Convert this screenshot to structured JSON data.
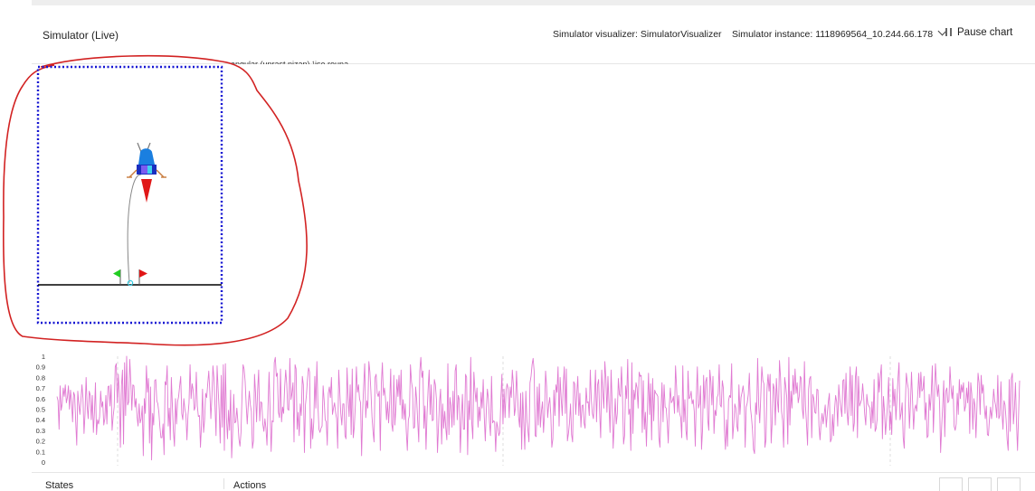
{
  "header": {
    "title": "Simulator (Live)",
    "visualizer_label": "Simulator visualizer: SimulatorVisualizer",
    "instance_label": "Simulator instance: 1118969564_10.244.66.178",
    "pause_label": "Pause chart"
  },
  "legend_snippet": "angular (unrast nizan) ¹ise rouna",
  "colors": {
    "annotation": "#d22222",
    "border_dots": "#1414d2",
    "series": "#e07ad2",
    "ground": "#000000"
  },
  "icons": {
    "pause": "pause-icon",
    "instance_dropdown": "chevron-down-icon",
    "lander": "lunar-lander-icon",
    "green_flag": "flag-icon",
    "red_flag": "flag-icon"
  },
  "chart_data": {
    "type": "line",
    "ylim": [
      0,
      1
    ],
    "y_ticks": [
      "1",
      "0.9",
      "0.8",
      "0.7",
      "0.6",
      "0.5",
      "0.4",
      "0.3",
      "0.2",
      "0.1",
      "0"
    ],
    "grid": "vertical dashed",
    "series": [
      {
        "color": "#e07ad2",
        "values": [
          0.62,
          0.58,
          0.31,
          0.72,
          0.49,
          0.55,
          0.7,
          0.62,
          0.73,
          0.56,
          0.61,
          0.72,
          0.5,
          0.68,
          0.57,
          0.38,
          0.66,
          0.63,
          0.38,
          0.16,
          0.67,
          0.55,
          0.45,
          0.58,
          0.73,
          0.6,
          0.27,
          0.46,
          0.8,
          0.53,
          0.41,
          0.67,
          0.63,
          0.4,
          0.63,
          0.28,
          0.47,
          0.75,
          0.26,
          0.4,
          0.36,
          0.43,
          0.67,
          0.52,
          0.57,
          0.35,
          0.41,
          0.63,
          0.36,
          0.71,
          0.72,
          0.53,
          0.73,
          0.3,
          0.43,
          0.52,
          0.9,
          0.93,
          0.56,
          0.83,
          0.63,
          0.14,
          0.72,
          0.87,
          0.17,
          0.94,
          0.44,
          1.0,
          0.54,
          0.57,
          0.97,
          0.76,
          0.49,
          0.73,
          0.72,
          0.52,
          0.6,
          0.43,
          0.34,
          0.55,
          0.37,
          0.41,
          0.53,
          0.06,
          0.6,
          0.46,
          0.91,
          0.66,
          0.79,
          0.18,
          0.71,
          0.02,
          0.46,
          0.35,
          0.77,
          0.78,
          0.58,
          0.55,
          0.47,
          0.33,
          0.23,
          0.23,
          0.36,
          0.07,
          0.76,
          0.73,
          0.91,
          0.34,
          0.51,
          0.21,
          0.8,
          0.53,
          0.29,
          0.15,
          0.6,
          0.36,
          0.57,
          0.62,
          0.72,
          0.81,
          0.46,
          0.4,
          0.6,
          0.5,
          0.45,
          0.21,
          0.44,
          0.56,
          0.92,
          0.6,
          0.74,
          0.68,
          0.49,
          0.52,
          0.85,
          0.53,
          0.43,
          0.44,
          0.14,
          0.35,
          0.69,
          0.28,
          0.4,
          0.65,
          0.61,
          0.74,
          0.86,
          0.67,
          0.41,
          0.62,
          0.91,
          0.79,
          0.53,
          0.25,
          0.91,
          0.69,
          0.49,
          0.18,
          0.82,
          0.33,
          0.92,
          0.11,
          0.93,
          0.42,
          0.22,
          0.49,
          0.3,
          0.68,
          0.04,
          0.29,
          0.64,
          0.37,
          0.38,
          0.51,
          0.38,
          0.22,
          0.15,
          0.28,
          0.63,
          0.92,
          0.88,
          0.76,
          0.54,
          0.36,
          0.54,
          0.67,
          0.54,
          0.48,
          0.13,
          0.2,
          0.83,
          0.65,
          0.38,
          0.68,
          0.87,
          0.39,
          0.57,
          0.56,
          0.36,
          0.29,
          0.41,
          0.32,
          0.16,
          0.52,
          0.85,
          0.49,
          0.1,
          0.39,
          0.38,
          0.94,
          0.99,
          0.81,
          0.84,
          0.47,
          0.42,
          0.88,
          0.38,
          0.52,
          0.46,
          0.71,
          0.87,
          0.74,
          0.5,
          0.49,
          0.98,
          0.59,
          0.65,
          0.75,
          0.19,
          0.92,
          0.88,
          0.31,
          0.47,
          0.25,
          0.55,
          0.44,
          0.81,
          0.73,
          0.09,
          0.54,
          0.64,
          0.79,
          0.89,
          0.85,
          0.13,
          0.41,
          0.22,
          0.38,
          0.81,
          0.51,
          0.95,
          0.54,
          0.31,
          0.28,
          0.32,
          0.34,
          0.72,
          0.58,
          0.4,
          0.38,
          0.16,
          0.65,
          0.71,
          0.61,
          0.8,
          0.45,
          0.51,
          0.56,
          0.47,
          0.41,
          0.13,
          0.87,
          0.67,
          0.46,
          0.35,
          0.55,
          0.55,
          0.25,
          0.22,
          0.89,
          0.62,
          0.43,
          0.73,
          0.26,
          0.88,
          0.23,
          0.33,
          0.54,
          0.9,
          0.66,
          0.73,
          0.6,
          0.56,
          0.06,
          0.48,
          0.72,
          0.93,
          0.42,
          0.58,
          0.51,
          0.95,
          0.85,
          0.66,
          0.43,
          0.29,
          0.19,
          0.8,
          0.83,
          0.65,
          0.62,
          0.67,
          0.11,
          0.74,
          0.94,
          0.63,
          0.7,
          0.6,
          0.4,
          0.57,
          0.37,
          0.55,
          0.88,
          0.36,
          0.29,
          0.82,
          0.35,
          0.51,
          0.78,
          0.62,
          0.82,
          0.54,
          0.87,
          0.41,
          0.59,
          0.4,
          0.55,
          0.29,
          0.11,
          0.4,
          0.44,
          0.92,
          0.76,
          0.69,
          0.32,
          0.33,
          0.71,
          0.59,
          0.38,
          0.19,
          0.86,
          0.99,
          0.8,
          0.86,
          0.32,
          0.53,
          0.12,
          0.46,
          0.69,
          0.87,
          0.45,
          0.73,
          0.39,
          0.4,
          0.78,
          0.73,
          0.59,
          0.09,
          0.33,
          0.57,
          0.69,
          0.17,
          0.55,
          0.32,
          0.48,
          0.32,
          0.21,
          0.93,
          0.26,
          0.61,
          0.53,
          0.33,
          0.67,
          0.35,
          0.86,
          0.92,
          0.4,
          0.63,
          0.59,
          0.09,
          0.41,
          0.64,
          0.31,
          0.31,
          0.83,
          0.8,
          0.07,
          0.58,
          0.4,
          0.99,
          0.37,
          0.22,
          0.85,
          0.68,
          0.57,
          0.7,
          0.33,
          0.52,
          0.39,
          0.66,
          0.51,
          0.78,
          0.43,
          0.2,
          0.5,
          0.69,
          0.6,
          0.38,
          0.25,
          0.81,
          0.37,
          0.39,
          0.38,
          0.1,
          0.38,
          0.33,
          0.25,
          0.28,
          0.6,
          0.83,
          0.36,
          0.69,
          0.42,
          0.68,
          0.74,
          0.69,
          0.42,
          0.71,
          0.61,
          0.87,
          0.73,
          0.44,
          0.51,
          0.86,
          0.63,
          0.43,
          0.33,
          0.65,
          0.12,
          0.66,
          0.37,
          0.12,
          0.67,
          0.4,
          0.3,
          0.19,
          0.75,
          0.81,
          0.92,
          0.98,
          0.86,
          0.25,
          0.24,
          0.71,
          0.35,
          0.74,
          0.33,
          0.48,
          0.57,
          0.28,
          0.46,
          0.86,
          0.71,
          0.42,
          0.54,
          0.61,
          0.45,
          0.14,
          0.22,
          0.68,
          0.44,
          0.73,
          0.66,
          0.9,
          0.34,
          0.8,
          0.6,
          0.44,
          0.73,
          0.9,
          0.46,
          0.88,
          0.2,
          0.27,
          0.37,
          0.55,
          0.26,
          0.19,
          0.76,
          0.74,
          0.45,
          0.65,
          0.81,
          0.44,
          0.65,
          0.33,
          0.53,
          0.54,
          0.37,
          0.32,
          0.7,
          0.56,
          0.57,
          0.44,
          0.87,
          0.59,
          0.46,
          0.41,
          0.6,
          0.87,
          0.38,
          0.73,
          0.78,
          0.47,
          0.23,
          0.87,
          0.67,
          0.51,
          0.95,
          0.79,
          0.47,
          0.81,
          0.55,
          0.28,
          0.87,
          0.57,
          0.13,
          0.36,
          0.6,
          0.36,
          0.46,
          0.79,
          0.64,
          0.62,
          0.9,
          0.61,
          0.17,
          0.25,
          0.72,
          0.6,
          0.97,
          0.45,
          0.5,
          0.11,
          0.94,
          0.27,
          0.68,
          0.59,
          0.75,
          0.7,
          0.51,
          0.85,
          0.81,
          0.82,
          0.28,
          0.77,
          0.31,
          0.47,
          0.15,
          0.51,
          0.84,
          0.45,
          0.74,
          0.21,
          0.79,
          0.39,
          0.68,
          0.65,
          0.64,
          0.62,
          0.23,
          0.14,
          0.48,
          0.75,
          0.38,
          0.73,
          0.52,
          0.51,
          0.38,
          0.18,
          0.53,
          0.7,
          0.56,
          0.58,
          0.62,
          0.46,
          0.91,
          0.71,
          0.47,
          0.63,
          0.46,
          0.42,
          0.23,
          0.91,
          0.38,
          0.59,
          0.3,
          0.21,
          0.86,
          0.6,
          0.61,
          0.67,
          0.55,
          0.59,
          0.48,
          0.15,
          0.62,
          0.9,
          0.51,
          0.55,
          0.72,
          0.12,
          0.31,
          0.82,
          0.51,
          0.76,
          0.8,
          0.4,
          0.3,
          0.87,
          0.76,
          0.54,
          0.81,
          0.27,
          0.49,
          0.44,
          0.61,
          0.64,
          0.92,
          0.54,
          0.52,
          0.77,
          0.7,
          0.31,
          0.12,
          0.4,
          0.15,
          0.58,
          0.63,
          0.61,
          0.93,
          0.22,
          0.36,
          0.55,
          0.51,
          0.34,
          0.29,
          0.73,
          0.45,
          0.61,
          0.66,
          0.72,
          0.63,
          0.14,
          0.52,
          0.56,
          0.64,
          0.84,
          0.52,
          0.43,
          0.31,
          0.12,
          0.08,
          0.56,
          0.45,
          0.98,
          0.54,
          0.37,
          0.62,
          0.9,
          0.77,
          0.74,
          0.14,
          0.21,
          0.69,
          0.83,
          0.67,
          0.83,
          0.18,
          0.38,
          0.74,
          0.69,
          0.35,
          0.79,
          0.58,
          0.47,
          0.96,
          0.8,
          0.48,
          0.39,
          0.14,
          0.8,
          0.72,
          0.61,
          0.17,
          0.99,
          0.35,
          0.67,
          0.51,
          0.82,
          0.64,
          0.88,
          0.65,
          0.75,
          0.56,
          0.62,
          0.81,
          0.79,
          0.5,
          0.41,
          0.95,
          0.53,
          0.36,
          0.16,
          0.69,
          0.79,
          0.81,
          0.23,
          0.64,
          0.6,
          0.47,
          0.46,
          0.69,
          0.68,
          0.34,
          0.21,
          0.37,
          0.46,
          0.36,
          0.45,
          0.54,
          0.33,
          0.46,
          0.57,
          0.65,
          0.19,
          0.22,
          0.45,
          0.25,
          0.5,
          0.63,
          0.57,
          0.34,
          0.73,
          0.59,
          0.51,
          0.43,
          0.77,
          0.78,
          0.46,
          0.84,
          0.48,
          0.35,
          0.56,
          0.9,
          0.44,
          0.82,
          0.29,
          0.37,
          0.8,
          0.9,
          0.23,
          0.81,
          0.53,
          0.56,
          0.59,
          0.74,
          0.61,
          0.45,
          0.35,
          0.64,
          0.55,
          0.53,
          0.51,
          0.32,
          0.57,
          0.37,
          0.78,
          0.29,
          0.32,
          0.41,
          0.84,
          0.66,
          0.81,
          0.92,
          0.22,
          0.62,
          0.48,
          0.26,
          0.4,
          0.56,
          0.8,
          0.3,
          0.47,
          0.26,
          0.79,
          0.53,
          0.69,
          0.4,
          0.6,
          0.79,
          0.94,
          0.4,
          0.46,
          0.56,
          0.23,
          0.13,
          0.54,
          0.84,
          0.75,
          0.69,
          0.32,
          0.55,
          0.85,
          0.58,
          0.31,
          0.5,
          0.54,
          0.48,
          0.64,
          0.84,
          0.61,
          0.85,
          0.67,
          0.69,
          0.81,
          0.4,
          0.56,
          0.23,
          0.25,
          0.64,
          0.49,
          0.65,
          0.91,
          0.28,
          0.57,
          0.93,
          0.75,
          0.62,
          0.73,
          0.56,
          0.09,
          0.33,
          0.53,
          0.77,
          0.24,
          0.67,
          0.7,
          0.56,
          0.58,
          0.9,
          0.71,
          0.6,
          0.72,
          0.34,
          0.3,
          0.36,
          0.65,
          0.45,
          0.78,
          0.6,
          0.73,
          0.66,
          0.75,
          0.48,
          0.53,
          0.7,
          0.56,
          0.76,
          0.27,
          0.75,
          0.64,
          0.31,
          0.6,
          0.53,
          0.23,
          0.53,
          0.84,
          0.75,
          0.45,
          0.82,
          0.65,
          0.73,
          0.53,
          0.41,
          0.53,
          0.26,
          0.25,
          0.41,
          0.52,
          0.41,
          0.5,
          0.69,
          0.58,
          0.53,
          0.42,
          0.82,
          0.41,
          0.44,
          0.76,
          0.47,
          0.31,
          0.58,
          0.54,
          0.4,
          0.21,
          0.11,
          0.78,
          0.29,
          0.79,
          0.84,
          0.36,
          0.5,
          0.75,
          0.37,
          0.11,
          0.45,
          0.77
        ]
      }
    ]
  },
  "bottom": {
    "states_label": "States",
    "actions_label": "Actions"
  }
}
